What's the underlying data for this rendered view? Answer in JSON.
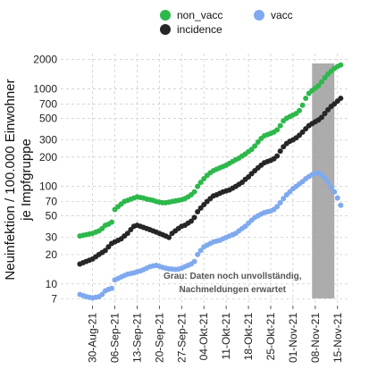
{
  "chart_data": {
    "type": "scatter",
    "ylabel_lines": [
      "Neuinfektion / 100.000 Einwohner",
      "je  Impfgruppe"
    ],
    "y_scale": "log",
    "ylim": [
      6,
      2300
    ],
    "y_ticks": [
      7,
      10,
      20,
      30,
      50,
      70,
      100,
      200,
      300,
      500,
      700,
      1000,
      2000
    ],
    "xlim": [
      "2021-08-20",
      "2021-11-19"
    ],
    "x_ticks": [
      {
        "date": "2021-08-30",
        "label": "30-Aug-21"
      },
      {
        "date": "2021-09-06",
        "label": "06-Sep-21"
      },
      {
        "date": "2021-09-13",
        "label": "13-Sep-21"
      },
      {
        "date": "2021-09-20",
        "label": "20-Sep-21"
      },
      {
        "date": "2021-09-27",
        "label": "27-Sep-21"
      },
      {
        "date": "2021-10-04",
        "label": "04-Okt-21"
      },
      {
        "date": "2021-10-11",
        "label": "11-Okt-21"
      },
      {
        "date": "2021-10-18",
        "label": "18-Okt-21"
      },
      {
        "date": "2021-10-25",
        "label": "25-Okt-21"
      },
      {
        "date": "2021-11-01",
        "label": "01-Nov-21"
      },
      {
        "date": "2021-11-08",
        "label": "08-Nov-21"
      },
      {
        "date": "2021-11-15",
        "label": "15-Nov-21"
      }
    ],
    "grid": true,
    "legend_position": "top",
    "shaded_region": {
      "from": "2021-11-07",
      "to": "2021-11-14",
      "color": "#9e9e9e"
    },
    "annotation": {
      "lines": [
        "Grau: Daten noch unvollständig,",
        "Nachmeldungen erwartet"
      ],
      "x": "2021-10-13",
      "y": 10
    },
    "series": [
      {
        "name": "non_vacc",
        "color": "#2db84b",
        "points": [
          [
            "2021-08-26",
            31
          ],
          [
            "2021-08-27",
            31.5
          ],
          [
            "2021-08-28",
            32
          ],
          [
            "2021-08-29",
            32.5
          ],
          [
            "2021-08-30",
            33
          ],
          [
            "2021-08-31",
            34
          ],
          [
            "2021-09-01",
            35
          ],
          [
            "2021-09-02",
            37
          ],
          [
            "2021-09-03",
            40
          ],
          [
            "2021-09-04",
            41
          ],
          [
            "2021-09-05",
            43
          ],
          [
            "2021-09-06",
            58
          ],
          [
            "2021-09-07",
            62
          ],
          [
            "2021-09-08",
            66
          ],
          [
            "2021-09-09",
            70
          ],
          [
            "2021-09-10",
            72
          ],
          [
            "2021-09-11",
            74
          ],
          [
            "2021-09-12",
            76
          ],
          [
            "2021-09-13",
            78
          ],
          [
            "2021-09-14",
            77
          ],
          [
            "2021-09-15",
            76
          ],
          [
            "2021-09-16",
            74
          ],
          [
            "2021-09-17",
            73
          ],
          [
            "2021-09-18",
            72
          ],
          [
            "2021-09-19",
            70
          ],
          [
            "2021-09-20",
            69
          ],
          [
            "2021-09-21",
            68
          ],
          [
            "2021-09-22",
            68
          ],
          [
            "2021-09-23",
            69
          ],
          [
            "2021-09-24",
            70
          ],
          [
            "2021-09-25",
            71
          ],
          [
            "2021-09-26",
            72
          ],
          [
            "2021-09-27",
            73
          ],
          [
            "2021-09-28",
            75
          ],
          [
            "2021-09-29",
            78
          ],
          [
            "2021-09-30",
            82
          ],
          [
            "2021-10-01",
            88
          ],
          [
            "2021-10-02",
            100
          ],
          [
            "2021-10-03",
            110
          ],
          [
            "2021-10-04",
            120
          ],
          [
            "2021-10-05",
            130
          ],
          [
            "2021-10-06",
            138
          ],
          [
            "2021-10-07",
            145
          ],
          [
            "2021-10-08",
            150
          ],
          [
            "2021-10-09",
            155
          ],
          [
            "2021-10-10",
            160
          ],
          [
            "2021-10-11",
            165
          ],
          [
            "2021-10-12",
            172
          ],
          [
            "2021-10-13",
            180
          ],
          [
            "2021-10-14",
            188
          ],
          [
            "2021-10-15",
            195
          ],
          [
            "2021-10-16",
            205
          ],
          [
            "2021-10-17",
            215
          ],
          [
            "2021-10-18",
            228
          ],
          [
            "2021-10-19",
            240
          ],
          [
            "2021-10-20",
            260
          ],
          [
            "2021-10-21",
            285
          ],
          [
            "2021-10-22",
            310
          ],
          [
            "2021-10-23",
            330
          ],
          [
            "2021-10-24",
            340
          ],
          [
            "2021-10-25",
            350
          ],
          [
            "2021-10-26",
            360
          ],
          [
            "2021-10-27",
            380
          ],
          [
            "2021-10-28",
            420
          ],
          [
            "2021-10-29",
            470
          ],
          [
            "2021-10-30",
            500
          ],
          [
            "2021-10-31",
            520
          ],
          [
            "2021-11-01",
            540
          ],
          [
            "2021-11-02",
            560
          ],
          [
            "2021-11-03",
            600
          ],
          [
            "2021-11-04",
            680
          ],
          [
            "2021-11-05",
            800
          ],
          [
            "2021-11-06",
            900
          ],
          [
            "2021-11-07",
            960
          ],
          [
            "2021-11-08",
            1020
          ],
          [
            "2021-11-09",
            1080
          ],
          [
            "2021-11-10",
            1180
          ],
          [
            "2021-11-11",
            1300
          ],
          [
            "2021-11-12",
            1420
          ],
          [
            "2021-11-13",
            1520
          ],
          [
            "2021-11-14",
            1620
          ],
          [
            "2021-11-15",
            1700
          ],
          [
            "2021-11-16",
            1760
          ]
        ]
      },
      {
        "name": "vacc",
        "color": "#7fa9ef",
        "points": [
          [
            "2021-08-26",
            7.8
          ],
          [
            "2021-08-27",
            7.6
          ],
          [
            "2021-08-28",
            7.4
          ],
          [
            "2021-08-29",
            7.3
          ],
          [
            "2021-08-30",
            7.2
          ],
          [
            "2021-08-31",
            7.3
          ],
          [
            "2021-09-01",
            7.4
          ],
          [
            "2021-09-02",
            7.8
          ],
          [
            "2021-09-03",
            8.5
          ],
          [
            "2021-09-04",
            8.8
          ],
          [
            "2021-09-05",
            9.0
          ],
          [
            "2021-09-06",
            11
          ],
          [
            "2021-09-07",
            11.4
          ],
          [
            "2021-09-08",
            11.8
          ],
          [
            "2021-09-09",
            12.2
          ],
          [
            "2021-09-10",
            12.6
          ],
          [
            "2021-09-11",
            12.8
          ],
          [
            "2021-09-12",
            13
          ],
          [
            "2021-09-13",
            13.3
          ],
          [
            "2021-09-14",
            13.6
          ],
          [
            "2021-09-15",
            14
          ],
          [
            "2021-09-16",
            14.5
          ],
          [
            "2021-09-17",
            15
          ],
          [
            "2021-09-18",
            15.3
          ],
          [
            "2021-09-19",
            15.5
          ],
          [
            "2021-09-20",
            15.2
          ],
          [
            "2021-09-21",
            14.8
          ],
          [
            "2021-09-22",
            14.5
          ],
          [
            "2021-09-23",
            14.3
          ],
          [
            "2021-09-24",
            14.2
          ],
          [
            "2021-09-25",
            14.1
          ],
          [
            "2021-09-26",
            14.2
          ],
          [
            "2021-09-27",
            14.5
          ],
          [
            "2021-09-28",
            15
          ],
          [
            "2021-09-29",
            15.5
          ],
          [
            "2021-09-30",
            16
          ],
          [
            "2021-10-01",
            17
          ],
          [
            "2021-10-02",
            20
          ],
          [
            "2021-10-03",
            22
          ],
          [
            "2021-10-04",
            24
          ],
          [
            "2021-10-05",
            25
          ],
          [
            "2021-10-06",
            26
          ],
          [
            "2021-10-07",
            27
          ],
          [
            "2021-10-08",
            27.5
          ],
          [
            "2021-10-09",
            28
          ],
          [
            "2021-10-10",
            29
          ],
          [
            "2021-10-11",
            30
          ],
          [
            "2021-10-12",
            31
          ],
          [
            "2021-10-13",
            32
          ],
          [
            "2021-10-14",
            33
          ],
          [
            "2021-10-15",
            35
          ],
          [
            "2021-10-16",
            37
          ],
          [
            "2021-10-17",
            39
          ],
          [
            "2021-10-18",
            42
          ],
          [
            "2021-10-19",
            45
          ],
          [
            "2021-10-20",
            48
          ],
          [
            "2021-10-21",
            50
          ],
          [
            "2021-10-22",
            52
          ],
          [
            "2021-10-23",
            54
          ],
          [
            "2021-10-24",
            55
          ],
          [
            "2021-10-25",
            56
          ],
          [
            "2021-10-26",
            58
          ],
          [
            "2021-10-27",
            62
          ],
          [
            "2021-10-28",
            68
          ],
          [
            "2021-10-29",
            75
          ],
          [
            "2021-10-30",
            82
          ],
          [
            "2021-10-31",
            88
          ],
          [
            "2021-11-01",
            95
          ],
          [
            "2021-11-02",
            100
          ],
          [
            "2021-11-03",
            106
          ],
          [
            "2021-11-04",
            112
          ],
          [
            "2021-11-05",
            120
          ],
          [
            "2021-11-06",
            126
          ],
          [
            "2021-11-07",
            132
          ],
          [
            "2021-11-08",
            136
          ],
          [
            "2021-11-09",
            138
          ],
          [
            "2021-11-10",
            132
          ],
          [
            "2021-11-11",
            122
          ],
          [
            "2021-11-12",
            110
          ],
          [
            "2021-11-13",
            98
          ],
          [
            "2021-11-14",
            88
          ],
          [
            "2021-11-15",
            76
          ],
          [
            "2021-11-16",
            64
          ]
        ]
      },
      {
        "name": "incidence",
        "color": "#262626",
        "points": [
          [
            "2021-08-26",
            16
          ],
          [
            "2021-08-27",
            16.5
          ],
          [
            "2021-08-28",
            17
          ],
          [
            "2021-08-29",
            17.5
          ],
          [
            "2021-08-30",
            18
          ],
          [
            "2021-08-31",
            19
          ],
          [
            "2021-09-01",
            20
          ],
          [
            "2021-09-02",
            21
          ],
          [
            "2021-09-03",
            22
          ],
          [
            "2021-09-04",
            24
          ],
          [
            "2021-09-05",
            26
          ],
          [
            "2021-09-06",
            27
          ],
          [
            "2021-09-07",
            28
          ],
          [
            "2021-09-08",
            29
          ],
          [
            "2021-09-09",
            31
          ],
          [
            "2021-09-10",
            33
          ],
          [
            "2021-09-11",
            36
          ],
          [
            "2021-09-12",
            39
          ],
          [
            "2021-09-13",
            40
          ],
          [
            "2021-09-14",
            39
          ],
          [
            "2021-09-15",
            38
          ],
          [
            "2021-09-16",
            37
          ],
          [
            "2021-09-17",
            36
          ],
          [
            "2021-09-18",
            35
          ],
          [
            "2021-09-19",
            34
          ],
          [
            "2021-09-20",
            33
          ],
          [
            "2021-09-21",
            32
          ],
          [
            "2021-09-22",
            31
          ],
          [
            "2021-09-23",
            30
          ],
          [
            "2021-09-24",
            33
          ],
          [
            "2021-09-25",
            35
          ],
          [
            "2021-09-26",
            37
          ],
          [
            "2021-09-27",
            39
          ],
          [
            "2021-09-28",
            40
          ],
          [
            "2021-09-29",
            42
          ],
          [
            "2021-09-30",
            44
          ],
          [
            "2021-10-01",
            48
          ],
          [
            "2021-10-02",
            55
          ],
          [
            "2021-10-03",
            60
          ],
          [
            "2021-10-04",
            65
          ],
          [
            "2021-10-05",
            70
          ],
          [
            "2021-10-06",
            75
          ],
          [
            "2021-10-07",
            80
          ],
          [
            "2021-10-08",
            82
          ],
          [
            "2021-10-09",
            85
          ],
          [
            "2021-10-10",
            88
          ],
          [
            "2021-10-11",
            90
          ],
          [
            "2021-10-12",
            92
          ],
          [
            "2021-10-13",
            96
          ],
          [
            "2021-10-14",
            100
          ],
          [
            "2021-10-15",
            105
          ],
          [
            "2021-10-16",
            110
          ],
          [
            "2021-10-17",
            118
          ],
          [
            "2021-10-18",
            125
          ],
          [
            "2021-10-19",
            135
          ],
          [
            "2021-10-20",
            145
          ],
          [
            "2021-10-21",
            155
          ],
          [
            "2021-10-22",
            165
          ],
          [
            "2021-10-23",
            175
          ],
          [
            "2021-10-24",
            180
          ],
          [
            "2021-10-25",
            185
          ],
          [
            "2021-10-26",
            192
          ],
          [
            "2021-10-27",
            205
          ],
          [
            "2021-10-28",
            230
          ],
          [
            "2021-10-29",
            255
          ],
          [
            "2021-10-30",
            275
          ],
          [
            "2021-10-31",
            290
          ],
          [
            "2021-11-01",
            300
          ],
          [
            "2021-11-02",
            315
          ],
          [
            "2021-11-03",
            335
          ],
          [
            "2021-11-04",
            360
          ],
          [
            "2021-11-05",
            390
          ],
          [
            "2021-11-06",
            420
          ],
          [
            "2021-11-07",
            440
          ],
          [
            "2021-11-08",
            460
          ],
          [
            "2021-11-09",
            480
          ],
          [
            "2021-11-10",
            510
          ],
          [
            "2021-11-11",
            560
          ],
          [
            "2021-11-12",
            610
          ],
          [
            "2021-11-13",
            660
          ],
          [
            "2021-11-14",
            700
          ],
          [
            "2021-11-15",
            750
          ],
          [
            "2021-11-16",
            800
          ]
        ]
      }
    ]
  }
}
